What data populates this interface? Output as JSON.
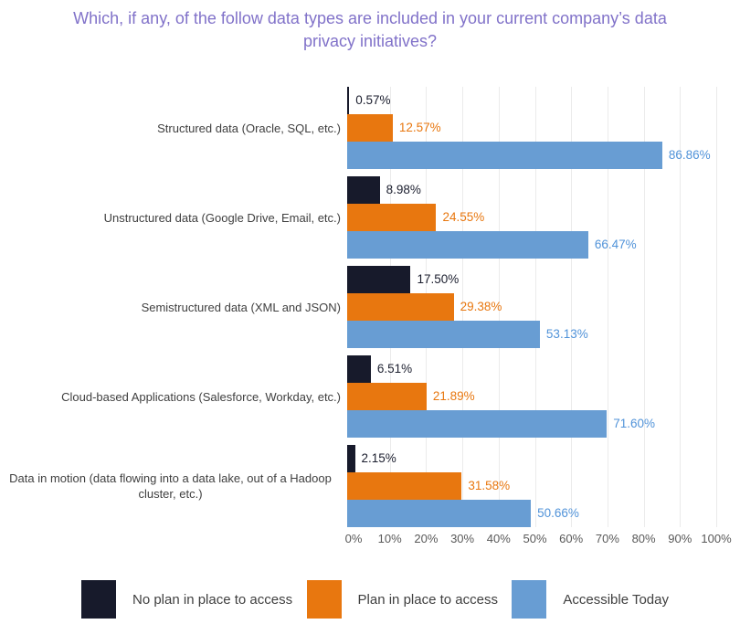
{
  "title": {
    "text": "Which, if any, of the follow data types are included in your current company’s data privacy initiatives?",
    "color": "#8172c9"
  },
  "chart_data": {
    "type": "bar",
    "orientation": "horizontal",
    "title": "Which, if any, of the follow data types are included in your current company’s data privacy initiatives?",
    "categories": [
      "Structured data (Oracle, SQL, etc.)",
      "Unstructured data (Google Drive, Email, etc.)",
      "Semistructured data (XML and JSON)",
      "Cloud-based Applications (Salesforce, Workday, etc.)",
      "Data in motion (data flowing into a data lake, out of a Hadoop cluster, etc.)"
    ],
    "series": [
      {
        "name": "No plan in place to access",
        "color": "#171a2b",
        "label_color": "#1b1e2e",
        "values": [
          0.57,
          8.98,
          17.5,
          6.51,
          2.15
        ],
        "labels": [
          "0.57%",
          "8.98%",
          "17.50%",
          "6.51%",
          "2.15%"
        ]
      },
      {
        "name": "Plan in place to access",
        "color": "#e8770f",
        "label_color": "#e8770f",
        "values": [
          12.57,
          24.55,
          29.38,
          21.89,
          31.58
        ],
        "labels": [
          "12.57%",
          "24.55%",
          "29.38%",
          "21.89%",
          "31.58%"
        ]
      },
      {
        "name": "Accessible Today",
        "color": "#689dd3",
        "label_color": "#5193d9",
        "values": [
          86.86,
          66.47,
          53.13,
          71.6,
          50.66
        ],
        "labels": [
          "86.86%",
          "66.47%",
          "53.13%",
          "71.60%",
          "50.66%"
        ]
      }
    ],
    "xlim": [
      0,
      100
    ],
    "xticks": [
      "0%",
      "10%",
      "20%",
      "30%",
      "40%",
      "50%",
      "60%",
      "70%",
      "80%",
      "90%",
      "100%"
    ],
    "grid": true,
    "gridline_color": "#ebebeb",
    "legend_position": "bottom"
  },
  "legend": {
    "items": [
      {
        "label": "No plan in place to access"
      },
      {
        "label": "Plan in place to access"
      },
      {
        "label": "Accessible Today"
      }
    ]
  }
}
